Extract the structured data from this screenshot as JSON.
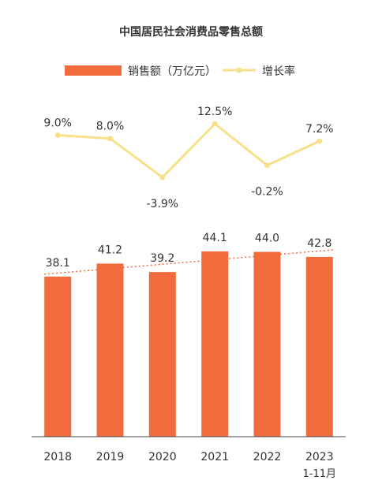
{
  "chart_data": {
    "type": "bar",
    "title": "中国居民社会消费品零售总额",
    "categories": [
      "2018",
      "2019",
      "2020",
      "2021",
      "2022",
      "2023"
    ],
    "category_sublabels": [
      "",
      "",
      "",
      "",
      "",
      "1-11月"
    ],
    "series": [
      {
        "name": "销售额（万亿元）",
        "type": "bar",
        "values": [
          38.1,
          41.2,
          39.2,
          44.1,
          44.0,
          42.8
        ],
        "value_labels": [
          "38.1",
          "41.2",
          "39.2",
          "44.1",
          "44.0",
          "42.8"
        ],
        "color": "#f26b3c"
      },
      {
        "name": "增长率",
        "type": "line",
        "values": [
          9.0,
          8.0,
          -3.9,
          12.5,
          -0.2,
          7.2
        ],
        "value_labels": [
          "9.0%",
          "8.0%",
          "-3.9%",
          "12.5%",
          "-0.2%",
          "7.2%"
        ],
        "color": "#f7e08a"
      }
    ],
    "trendline": {
      "series": "销售额（万亿元）",
      "style": "dotted",
      "color": "#f26b3c"
    },
    "legend_position": "top",
    "grid": false
  }
}
